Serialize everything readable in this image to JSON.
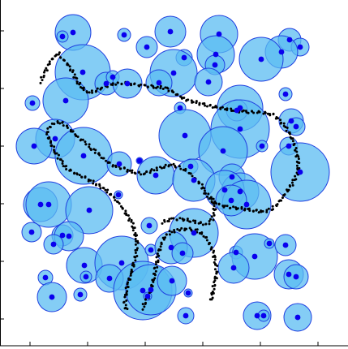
{
  "chart_data": {
    "type": "scatter",
    "title": "",
    "xlabel": "",
    "ylabel": "",
    "grid": false,
    "legend": "none",
    "colors": {
      "circle_fill": "#5bbcf2",
      "circle_stroke": "#1f3fe0",
      "center_point": "#0a00ee",
      "path_point": "#000000",
      "axis": "#000000"
    },
    "xlim": [
      0,
      429
    ],
    "ylim": [
      0,
      426
    ],
    "x_ticks": [
      37,
      108,
      179,
      250,
      321,
      392
    ],
    "y_ticks": [
      38,
      109,
      180,
      251,
      322,
      393
    ],
    "circles": [
      {
        "x": 90,
        "y": 40,
        "r": 22
      },
      {
        "x": 77,
        "y": 45,
        "r": 7
      },
      {
        "x": 153,
        "y": 43,
        "r": 8
      },
      {
        "x": 210,
        "y": 39,
        "r": 19
      },
      {
        "x": 270,
        "y": 42,
        "r": 23
      },
      {
        "x": 181,
        "y": 58,
        "r": 13
      },
      {
        "x": 357,
        "y": 49,
        "r": 14
      },
      {
        "x": 370,
        "y": 58,
        "r": 11
      },
      {
        "x": 347,
        "y": 64,
        "r": 20
      },
      {
        "x": 322,
        "y": 73,
        "r": 27
      },
      {
        "x": 102,
        "y": 89,
        "r": 34
      },
      {
        "x": 227,
        "y": 71,
        "r": 10
      },
      {
        "x": 266,
        "y": 67,
        "r": 23
      },
      {
        "x": 214,
        "y": 90,
        "r": 29
      },
      {
        "x": 265,
        "y": 80,
        "r": 12
      },
      {
        "x": 257,
        "y": 101,
        "r": 17
      },
      {
        "x": 81,
        "y": 124,
        "r": 28
      },
      {
        "x": 131,
        "y": 103,
        "r": 14
      },
      {
        "x": 139,
        "y": 95,
        "r": 8
      },
      {
        "x": 157,
        "y": 103,
        "r": 18
      },
      {
        "x": 196,
        "y": 102,
        "r": 16
      },
      {
        "x": 40,
        "y": 127,
        "r": 9
      },
      {
        "x": 296,
        "y": 133,
        "r": 28
      },
      {
        "x": 292,
        "y": 136,
        "r": 13
      },
      {
        "x": 352,
        "y": 116,
        "r": 8
      },
      {
        "x": 296,
        "y": 159,
        "r": 36
      },
      {
        "x": 359,
        "y": 149,
        "r": 15
      },
      {
        "x": 365,
        "y": 156,
        "r": 11
      },
      {
        "x": 222,
        "y": 133,
        "r": 7
      },
      {
        "x": 68,
        "y": 171,
        "r": 24
      },
      {
        "x": 42,
        "y": 180,
        "r": 22
      },
      {
        "x": 103,
        "y": 192,
        "r": 35
      },
      {
        "x": 228,
        "y": 167,
        "r": 32
      },
      {
        "x": 275,
        "y": 186,
        "r": 30
      },
      {
        "x": 323,
        "y": 180,
        "r": 7
      },
      {
        "x": 356,
        "y": 180,
        "r": 11
      },
      {
        "x": 147,
        "y": 202,
        "r": 15
      },
      {
        "x": 172,
        "y": 198,
        "r": 4
      },
      {
        "x": 192,
        "y": 216,
        "r": 23
      },
      {
        "x": 235,
        "y": 205,
        "r": 9
      },
      {
        "x": 370,
        "y": 212,
        "r": 36
      },
      {
        "x": 239,
        "y": 222,
        "r": 26
      },
      {
        "x": 286,
        "y": 218,
        "r": 16
      },
      {
        "x": 296,
        "y": 236,
        "r": 23
      },
      {
        "x": 277,
        "y": 234,
        "r": 24
      },
      {
        "x": 304,
        "y": 252,
        "r": 30
      },
      {
        "x": 285,
        "y": 247,
        "r": 19
      },
      {
        "x": 50,
        "y": 252,
        "r": 21
      },
      {
        "x": 60,
        "y": 252,
        "r": 28
      },
      {
        "x": 110,
        "y": 259,
        "r": 29
      },
      {
        "x": 146,
        "y": 240,
        "r": 5
      },
      {
        "x": 184,
        "y": 278,
        "r": 10
      },
      {
        "x": 239,
        "y": 287,
        "r": 30
      },
      {
        "x": 39,
        "y": 286,
        "r": 12
      },
      {
        "x": 77,
        "y": 290,
        "r": 13
      },
      {
        "x": 85,
        "y": 291,
        "r": 18
      },
      {
        "x": 66,
        "y": 301,
        "r": 12
      },
      {
        "x": 104,
        "y": 327,
        "r": 22
      },
      {
        "x": 150,
        "y": 324,
        "r": 33
      },
      {
        "x": 135,
        "y": 343,
        "r": 17
      },
      {
        "x": 186,
        "y": 308,
        "r": 7
      },
      {
        "x": 211,
        "y": 305,
        "r": 20
      },
      {
        "x": 225,
        "y": 312,
        "r": 13
      },
      {
        "x": 291,
        "y": 311,
        "r": 8
      },
      {
        "x": 314,
        "y": 316,
        "r": 28
      },
      {
        "x": 332,
        "y": 300,
        "r": 6
      },
      {
        "x": 352,
        "y": 302,
        "r": 13
      },
      {
        "x": 288,
        "y": 330,
        "r": 19
      },
      {
        "x": 356,
        "y": 338,
        "r": 18
      },
      {
        "x": 365,
        "y": 341,
        "r": 15
      },
      {
        "x": 56,
        "y": 342,
        "r": 9
      },
      {
        "x": 106,
        "y": 341,
        "r": 7
      },
      {
        "x": 176,
        "y": 358,
        "r": 36
      },
      {
        "x": 186,
        "y": 357,
        "r": 31
      },
      {
        "x": 212,
        "y": 346,
        "r": 18
      },
      {
        "x": 64,
        "y": 366,
        "r": 18
      },
      {
        "x": 99,
        "y": 363,
        "r": 8
      },
      {
        "x": 232,
        "y": 361,
        "r": 5
      },
      {
        "x": 182,
        "y": 365,
        "r": 5
      },
      {
        "x": 229,
        "y": 389,
        "r": 10
      },
      {
        "x": 317,
        "y": 389,
        "r": 17
      },
      {
        "x": 325,
        "y": 389,
        "r": 7
      },
      {
        "x": 367,
        "y": 391,
        "r": 17
      }
    ],
    "path_segments": [
      [
        [
          50,
          101
        ],
        [
          55,
          90
        ],
        [
          60,
          79
        ],
        [
          66,
          71
        ],
        [
          72,
          66
        ],
        [
          76,
          71
        ],
        [
          83,
          79
        ],
        [
          90,
          90
        ],
        [
          95,
          100
        ],
        [
          101,
          108
        ],
        [
          108,
          114
        ],
        [
          117,
          112
        ],
        [
          127,
          108
        ],
        [
          138,
          104
        ],
        [
          151,
          102
        ],
        [
          165,
          104
        ],
        [
          179,
          106
        ],
        [
          193,
          107
        ],
        [
          205,
          109
        ],
        [
          215,
          114
        ],
        [
          223,
          120
        ],
        [
          233,
          124
        ],
        [
          245,
          127
        ],
        [
          256,
          130
        ],
        [
          266,
          132
        ],
        [
          277,
          134
        ],
        [
          290,
          136
        ],
        [
          302,
          138
        ],
        [
          314,
          138
        ],
        [
          326,
          139
        ],
        [
          338,
          142
        ],
        [
          346,
          150
        ],
        [
          352,
          157
        ],
        [
          358,
          166
        ],
        [
          362,
          176
        ],
        [
          365,
          186
        ],
        [
          367,
          196
        ],
        [
          368,
          206
        ],
        [
          366,
          216
        ],
        [
          361,
          225
        ],
        [
          356,
          233
        ],
        [
          349,
          242
        ],
        [
          343,
          251
        ],
        [
          334,
          258
        ],
        [
          323,
          261
        ],
        [
          311,
          259
        ],
        [
          299,
          257
        ],
        [
          287,
          256
        ],
        [
          276,
          254
        ],
        [
          267,
          251
        ],
        [
          259,
          245
        ],
        [
          253,
          237
        ],
        [
          248,
          228
        ],
        [
          241,
          220
        ],
        [
          232,
          212
        ],
        [
          222,
          206
        ],
        [
          211,
          203
        ],
        [
          199,
          206
        ],
        [
          188,
          210
        ],
        [
          176,
          214
        ],
        [
          164,
          212
        ],
        [
          152,
          208
        ],
        [
          140,
          204
        ],
        [
          130,
          198
        ],
        [
          122,
          190
        ],
        [
          112,
          182
        ],
        [
          104,
          175
        ],
        [
          95,
          168
        ],
        [
          86,
          159
        ],
        [
          78,
          152
        ],
        [
          70,
          150
        ],
        [
          62,
          155
        ],
        [
          58,
          164
        ],
        [
          62,
          176
        ],
        [
          69,
          188
        ],
        [
          76,
          200
        ],
        [
          83,
          208
        ],
        [
          94,
          214
        ],
        [
          106,
          220
        ],
        [
          118,
          226
        ],
        [
          130,
          234
        ],
        [
          141,
          244
        ],
        [
          150,
          255
        ],
        [
          157,
          265
        ],
        [
          163,
          276
        ],
        [
          167,
          288
        ],
        [
          169,
          300
        ],
        [
          168,
          312
        ],
        [
          165,
          325
        ],
        [
          161,
          338
        ],
        [
          158,
          350
        ],
        [
          155,
          362
        ],
        [
          154,
          374
        ],
        [
          156,
          384
        ]
      ],
      [
        [
          176,
          380
        ],
        [
          180,
          370
        ],
        [
          185,
          360
        ],
        [
          188,
          350
        ],
        [
          190,
          340
        ],
        [
          192,
          330
        ],
        [
          194,
          320
        ],
        [
          196,
          310
        ],
        [
          199,
          300
        ],
        [
          203,
          292
        ],
        [
          210,
          286
        ],
        [
          220,
          283
        ],
        [
          231,
          282
        ],
        [
          242,
          284
        ],
        [
          252,
          290
        ],
        [
          258,
          300
        ],
        [
          263,
          312
        ],
        [
          266,
          324
        ],
        [
          267,
          336
        ],
        [
          265,
          348
        ],
        [
          262,
          360
        ],
        [
          260,
          372
        ]
      ],
      [
        [
          200,
          274
        ],
        [
          212,
          270
        ],
        [
          224,
          270
        ],
        [
          236,
          272
        ],
        [
          246,
          275
        ],
        [
          255,
          276
        ],
        [
          262,
          270
        ],
        [
          265,
          260
        ],
        [
          263,
          250
        ],
        [
          260,
          240
        ]
      ]
    ]
  }
}
